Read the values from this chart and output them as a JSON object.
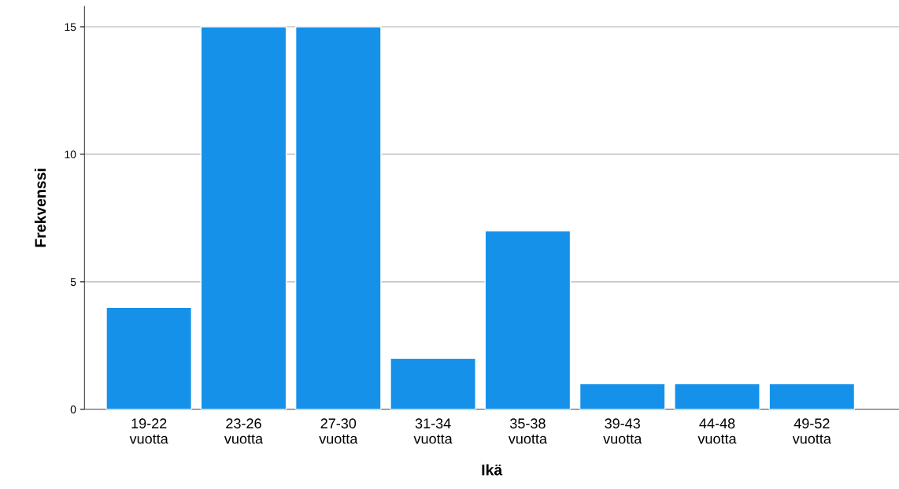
{
  "chart_data": {
    "type": "bar",
    "xlabel": "Ikä",
    "ylabel": "Frekvenssi",
    "categories": [
      "19-22\nvuotta",
      "23-26\nvuotta",
      "27-30\nvuotta",
      "31-34\nvuotta",
      "35-38\nvuotta",
      "39-43\nvuotta",
      "44-48\nvuotta",
      "49-52\nvuotta"
    ],
    "values": [
      4,
      15,
      15,
      2,
      7,
      1,
      1,
      1
    ],
    "color": "#1591ea",
    "ylim": [
      0,
      15.8
    ],
    "yticks": [
      0,
      5,
      10,
      15
    ],
    "grid": "y"
  }
}
